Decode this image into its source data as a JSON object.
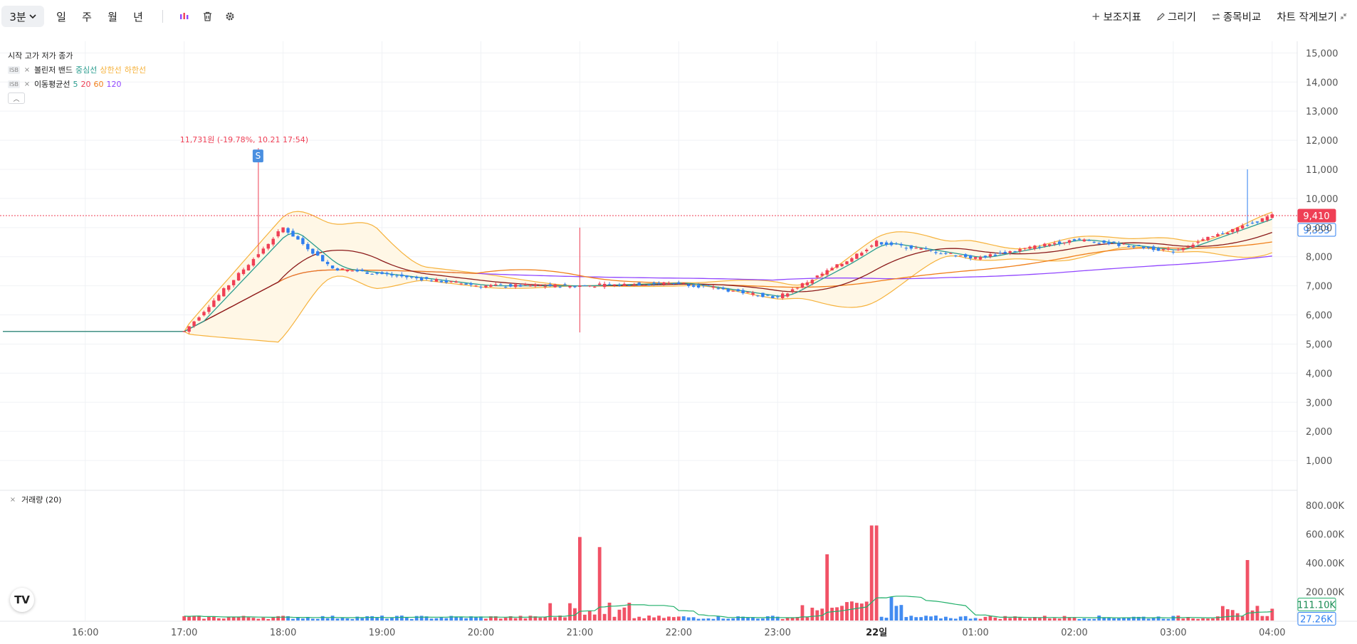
{
  "toolbar": {
    "interval": "3분",
    "timeframes": [
      "일",
      "주",
      "월",
      "년"
    ],
    "right": {
      "indicators": "보조지표",
      "draw": "그리기",
      "compare": "종목비교",
      "mini": "차트 작게보기"
    }
  },
  "legend": {
    "ohlc": "시작 고가 저가 종가",
    "bb": {
      "chip": "ISB",
      "name": "볼린저 밴드",
      "mid": "중심선",
      "upper": "상한선",
      "lower": "하한선"
    },
    "ma": {
      "chip": "ISB",
      "name": "이동평균선",
      "p5": "5",
      "p20": "20",
      "p60": "60",
      "p120": "120"
    }
  },
  "volume_legend": "거래량 (20)",
  "logo": "TV",
  "annotation": {
    "high_label": "11,731원 (-19.78%, 10.21 17:54)",
    "sell_marker": "S"
  },
  "price_tags": {
    "last": "9,410",
    "ref": "9,353"
  },
  "volume_tags": {
    "ma": "111.10K",
    "last": "27.26K"
  },
  "colors": {
    "up": "#ef3f55",
    "down": "#2f7ff0",
    "bb_band": "#f6b23c",
    "ma5": "#2a9d8f",
    "ma20": "#8b1a1a",
    "ma60": "#f07f1a",
    "ma120": "#9146ff",
    "vol_ma": "#22b06b"
  },
  "chart_data": {
    "type": "candlestick",
    "x_ticks": [
      "16:00",
      "17:00",
      "18:00",
      "19:00",
      "20:00",
      "21:00",
      "22:00",
      "23:00",
      "22일",
      "01:00",
      "02:00",
      "03:00",
      "04:00"
    ],
    "y_ticks": [
      "15,000",
      "14,000",
      "13,000",
      "12,000",
      "11,000",
      "10,000",
      "9,000",
      "8,000",
      "7,000",
      "6,000",
      "5,000",
      "4,000",
      "3,000",
      "2,000",
      "1,000"
    ],
    "ylim": [
      0,
      15400
    ],
    "volume_ticks": [
      "800.00K",
      "600.00K",
      "400.00K",
      "200.00K"
    ],
    "volume_ylim": [
      0,
      850000
    ],
    "key_points": [
      {
        "time": "16:00",
        "close": 5430
      },
      {
        "time": "17:00",
        "close": 5430
      },
      {
        "time": "17:45",
        "high": 11731
      },
      {
        "time": "18:00",
        "close": 9000
      },
      {
        "time": "18:30",
        "close": 7600
      },
      {
        "time": "20:00",
        "close": 7000
      },
      {
        "time": "21:00",
        "close": 7000,
        "high": 9000,
        "low": 5400
      },
      {
        "time": "22:00",
        "close": 7100
      },
      {
        "time": "23:00",
        "close": 6600
      },
      {
        "time": "23:40",
        "close": 7800
      },
      {
        "time": "00:00",
        "close": 8500
      },
      {
        "time": "01:00",
        "close": 7950
      },
      {
        "time": "02:00",
        "close": 8600
      },
      {
        "time": "03:00",
        "close": 8200
      },
      {
        "time": "03:45",
        "high": 11000
      },
      {
        "time": "04:00",
        "close": 9410
      }
    ],
    "volume_peaks": [
      {
        "time": "21:00",
        "volume": 580000
      },
      {
        "time": "21:12",
        "volume": 510000
      },
      {
        "time": "23:30",
        "volume": 460000
      },
      {
        "time": "23:58",
        "volume": 660000
      },
      {
        "time": "03:45",
        "volume": 420000
      }
    ],
    "last_price": 9410,
    "last_volume": 27260,
    "volume_ma": 111100
  }
}
